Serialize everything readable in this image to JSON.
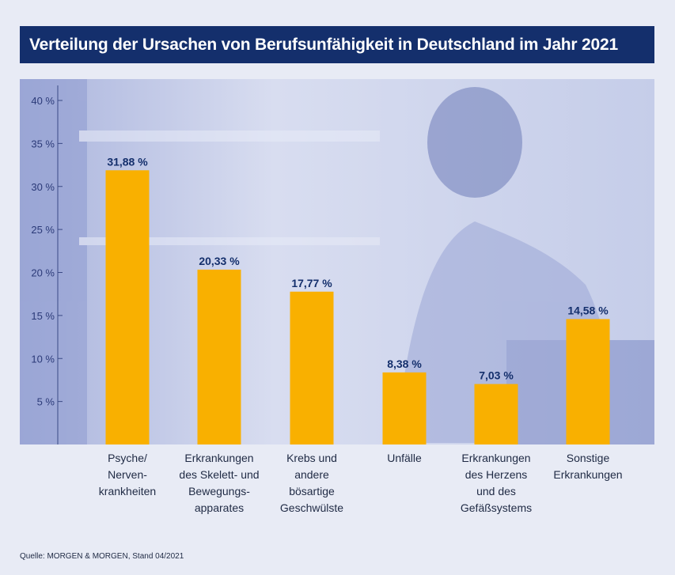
{
  "title": "Verteilung der Ursachen von Berufsunfähigkeit in Deutschland im Jahr 2021",
  "source": "Quelle: MORGEN & MORGEN, Stand 04/2021",
  "colors": {
    "bar": "#f9b000",
    "title_bg": "#142f6c",
    "plot_bg": "#c3cbe8",
    "label_value": "#142f6c"
  },
  "chart_data": {
    "type": "bar",
    "title": "Verteilung der Ursachen von Berufsunfähigkeit in Deutschland im Jahr 2021",
    "xlabel": "",
    "ylabel": "",
    "ylim": [
      0,
      40
    ],
    "yticks": [
      5,
      10,
      15,
      20,
      25,
      30,
      35,
      40
    ],
    "ytick_labels": [
      "5 %",
      "10 %",
      "15 %",
      "20 %",
      "25 %",
      "30 %",
      "35 %",
      "40 %"
    ],
    "grid": false,
    "categories": [
      [
        "Psyche/",
        "Nerven-",
        "krankheiten"
      ],
      [
        "Erkrankungen",
        "des Skelett- und",
        "Bewegungs-",
        "apparates"
      ],
      [
        "Krebs und",
        "andere",
        "bösartige",
        "Geschwülste"
      ],
      [
        "Unfälle"
      ],
      [
        "Erkrankungen",
        "des Herzens",
        "und des",
        "Gefäßsystems"
      ],
      [
        "Sonstige",
        "Erkrankungen"
      ]
    ],
    "values": [
      31.88,
      20.33,
      17.77,
      8.38,
      7.03,
      14.58
    ],
    "value_labels": [
      "31,88 %",
      "20,33 %",
      "17,77 %",
      "8,38 %",
      "7,03 %",
      "14,58 %"
    ]
  }
}
